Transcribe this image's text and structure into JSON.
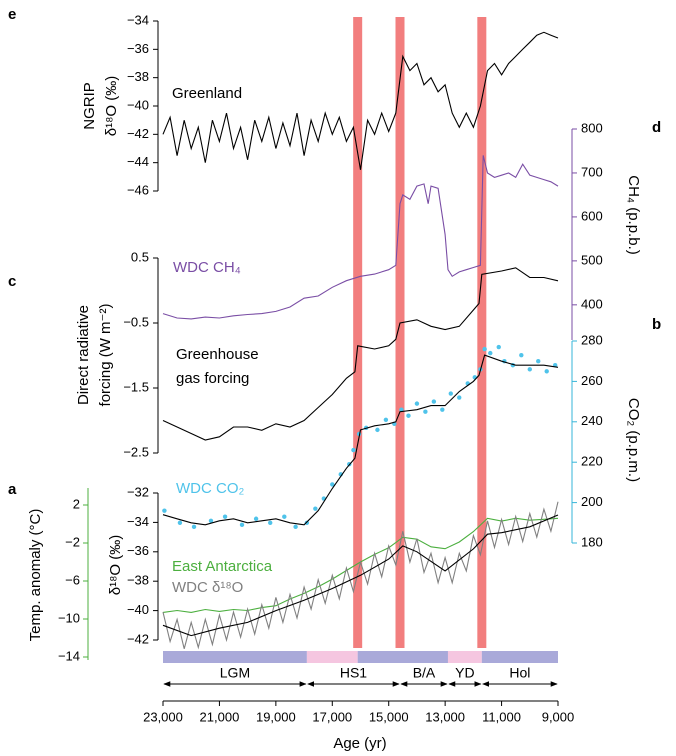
{
  "chart_data": [
    {
      "type": "line",
      "panel_label": "e",
      "ylabel": [
        "NGRIP",
        "δ¹⁸O (‰)"
      ],
      "axis_side": "left",
      "axis_color": "#000000",
      "ylim": [
        -46,
        -34
      ],
      "yticks": [
        {
          "value": -46,
          "label": "−46"
        },
        {
          "value": -44,
          "label": "−44"
        },
        {
          "value": -42,
          "label": "−42"
        },
        {
          "value": -40,
          "label": "−40"
        },
        {
          "value": -38,
          "label": "−38"
        },
        {
          "value": -36,
          "label": "−36"
        },
        {
          "value": -34,
          "label": "−34"
        }
      ],
      "series": [
        {
          "name": "Greenland",
          "color": "#000000",
          "x": [
            23000,
            22750,
            22500,
            22250,
            22000,
            21750,
            21500,
            21250,
            21000,
            20750,
            20500,
            20250,
            20000,
            19750,
            19500,
            19250,
            19000,
            18750,
            18500,
            18250,
            18000,
            17750,
            17500,
            17250,
            17000,
            16750,
            16500,
            16250,
            16000,
            15750,
            15500,
            15250,
            15000,
            14750,
            14500,
            14250,
            14000,
            13750,
            13500,
            13250,
            13000,
            12750,
            12500,
            12250,
            12000,
            11750,
            11500,
            11250,
            11000,
            10750,
            10500,
            10250,
            10000,
            9750,
            9500,
            9250,
            9000
          ],
          "values": [
            -42,
            -40.8,
            -43.5,
            -41,
            -43,
            -41.5,
            -44,
            -41,
            -42.5,
            -40.5,
            -43,
            -41.5,
            -43.8,
            -41,
            -42.5,
            -40.8,
            -43,
            -41.2,
            -42.8,
            -40.5,
            -43.5,
            -41,
            -42.5,
            -40.5,
            -42,
            -40.8,
            -42.5,
            -41.5,
            -44.5,
            -41,
            -42,
            -40.5,
            -41.8,
            -40.5,
            -36.5,
            -37.5,
            -37,
            -38.5,
            -38,
            -39,
            -38.5,
            -40.5,
            -41.5,
            -40.5,
            -41.5,
            -40,
            -37.5,
            -37,
            -37.8,
            -37,
            -36.5,
            -36,
            -35.5,
            -35,
            -34.8,
            -35,
            -35.2
          ]
        }
      ]
    },
    {
      "type": "line",
      "panel_label": "d",
      "ylabel": [
        "CH₄ (p.p.b.)"
      ],
      "axis_side": "right",
      "axis_color": "#7a4ea5",
      "ylim": [
        320,
        800
      ],
      "yticks": [
        400,
        500,
        600,
        700,
        800
      ],
      "series": [
        {
          "name": "WDC CH₄",
          "color": "#7a4ea5",
          "x": [
            23000,
            22500,
            22000,
            21500,
            21000,
            20500,
            20000,
            19500,
            19000,
            18500,
            18000,
            17500,
            17000,
            16500,
            16000,
            15500,
            15000,
            14750,
            14600,
            14500,
            14250,
            14000,
            13750,
            13600,
            13500,
            13250,
            13000,
            12900,
            12750,
            12500,
            12250,
            12000,
            11750,
            11650,
            11500,
            11250,
            11000,
            10750,
            10500,
            10250,
            10000,
            9750,
            9500,
            9250,
            9000
          ],
          "values": [
            380,
            370,
            368,
            372,
            370,
            375,
            378,
            380,
            385,
            395,
            415,
            420,
            440,
            455,
            465,
            470,
            480,
            490,
            630,
            650,
            640,
            670,
            675,
            630,
            670,
            665,
            560,
            480,
            465,
            475,
            480,
            485,
            490,
            740,
            700,
            690,
            695,
            700,
            690,
            720,
            695,
            690,
            685,
            680,
            670
          ]
        }
      ]
    },
    {
      "type": "line",
      "panel_label": "c",
      "ylabel": [
        "Direct radiative",
        "forcing (W m⁻²)"
      ],
      "axis_side": "left",
      "axis_color": "#000000",
      "ylim": [
        -2.5,
        0.5
      ],
      "yticks": [
        {
          "value": -2.5,
          "label": "−2.5"
        },
        {
          "value": -1.5,
          "label": "−1.5"
        },
        {
          "value": -0.5,
          "label": "−0.5"
        },
        0.5
      ],
      "series": [
        {
          "name": "Greenhouse gas forcing",
          "color": "#000000",
          "x": [
            23000,
            22500,
            22000,
            21500,
            21000,
            20500,
            20000,
            19500,
            19000,
            18500,
            18000,
            17500,
            17000,
            16500,
            16200,
            16100,
            15500,
            15000,
            14750,
            14600,
            14000,
            13500,
            13000,
            12500,
            12000,
            11800,
            11700,
            11000,
            10500,
            10000,
            9500,
            9000
          ],
          "values": [
            -2.0,
            -2.1,
            -2.2,
            -2.3,
            -2.25,
            -2.1,
            -2.1,
            -2.15,
            -2.05,
            -2.1,
            -2.0,
            -1.8,
            -1.6,
            -1.35,
            -1.25,
            -0.85,
            -0.9,
            -0.85,
            -0.75,
            -0.5,
            -0.45,
            -0.55,
            -0.6,
            -0.55,
            -0.3,
            -0.2,
            0.25,
            0.3,
            0.35,
            0.2,
            0.2,
            0.15
          ]
        }
      ]
    },
    {
      "type": "line",
      "panel_label": "b",
      "ylabel": [
        "CO₂ (p.p.m.)"
      ],
      "axis_side": "right",
      "axis_color": "#36b5d8",
      "ylim": [
        180,
        280
      ],
      "yticks": [
        180,
        200,
        220,
        240,
        260,
        280
      ],
      "series": [
        {
          "name": "WDC CO₂",
          "type": "scatter",
          "color": "#4fc3ea",
          "x": [
            22950,
            22400,
            21900,
            21300,
            20800,
            20200,
            19700,
            19200,
            18700,
            18300,
            17900,
            17600,
            17300,
            17000,
            16700,
            16400,
            16250,
            16050,
            15800,
            15400,
            15100,
            14800,
            14550,
            14300,
            14000,
            13700,
            13400,
            13100,
            12800,
            12500,
            12200,
            11950,
            11750,
            11600,
            11400,
            11100,
            10900,
            10600,
            10300,
            10000,
            9700,
            9400,
            9100
          ],
          "values": [
            196,
            190,
            188,
            191,
            193,
            189,
            192,
            190,
            193,
            188,
            190,
            197,
            202,
            209,
            214,
            219,
            226,
            234,
            237,
            236,
            241,
            239,
            246,
            243,
            249,
            245,
            250,
            246,
            254,
            252,
            259,
            262,
            266,
            276,
            274,
            277,
            270,
            268,
            273,
            266,
            270,
            265,
            268
          ]
        },
        {
          "type": "line",
          "color": "#000000",
          "x": [
            23000,
            22500,
            22000,
            21500,
            21000,
            20500,
            20000,
            19500,
            19000,
            18500,
            18000,
            17500,
            17000,
            16500,
            16200,
            16000,
            15500,
            15000,
            14750,
            14600,
            14000,
            13500,
            13000,
            12500,
            12000,
            11800,
            11600,
            11000,
            10500,
            10000,
            9500,
            9000
          ],
          "values": [
            194,
            192,
            190,
            189,
            191,
            192,
            190,
            191,
            192,
            190,
            189,
            196,
            207,
            217,
            222,
            236,
            238,
            239,
            240,
            245,
            246,
            248,
            248,
            255,
            260,
            263,
            273,
            270,
            268,
            268,
            268,
            267
          ]
        }
      ]
    },
    {
      "type": "line",
      "panel_label": "a",
      "ylabel": [
        "δ¹⁸O (‰)"
      ],
      "axis_side": "left",
      "axis_color": "#000000",
      "ylim": [
        -42,
        -32
      ],
      "yticks": [
        {
          "value": -42,
          "label": "−42"
        },
        {
          "value": -40,
          "label": "−40"
        },
        {
          "value": -38,
          "label": "−38"
        },
        {
          "value": -36,
          "label": "−36"
        },
        {
          "value": -34,
          "label": "−34"
        },
        {
          "value": -32,
          "label": "−32"
        }
      ],
      "y2label": "Temp. anomaly (°C)",
      "y2_color": "#4caf3f",
      "y2lim": [
        -14,
        2
      ],
      "y2ticks": [
        {
          "value": -14,
          "label": "−14"
        },
        {
          "value": -10,
          "label": "−10"
        },
        {
          "value": -6,
          "label": "−6"
        },
        {
          "value": -2,
          "label": "−2"
        },
        2
      ],
      "series": [
        {
          "name": "East Antarctica",
          "axis": "y2",
          "color": "#4caf3f",
          "x": [
            23000,
            22500,
            22000,
            21500,
            21000,
            20500,
            20000,
            19500,
            19000,
            18500,
            18000,
            17500,
            17000,
            16500,
            16000,
            15500,
            15000,
            14500,
            14000,
            13500,
            13000,
            12500,
            12000,
            11500,
            11000,
            10500,
            10000,
            9500,
            9000
          ],
          "values": [
            -9.3,
            -9.1,
            -9.3,
            -9.0,
            -9.2,
            -9.0,
            -9.1,
            -8.8,
            -8.6,
            -7.9,
            -7.3,
            -6.6,
            -5.8,
            -4.9,
            -4.0,
            -3.2,
            -2.5,
            -1.4,
            -1.6,
            -2.4,
            -2.6,
            -1.9,
            -0.8,
            0.6,
            0.3,
            0.6,
            0.4,
            0.5,
            0.6
          ]
        },
        {
          "name": "WDC δ¹⁸O",
          "color": "#808080",
          "x": [
            23000,
            22750,
            22500,
            22250,
            22000,
            21750,
            21500,
            21250,
            21000,
            20750,
            20500,
            20250,
            20000,
            19750,
            19500,
            19250,
            19000,
            18750,
            18500,
            18250,
            18000,
            17750,
            17500,
            17250,
            17000,
            16750,
            16500,
            16250,
            16000,
            15750,
            15500,
            15250,
            15000,
            14750,
            14500,
            14250,
            14000,
            13750,
            13500,
            13250,
            13000,
            12750,
            12500,
            12250,
            12000,
            11750,
            11500,
            11250,
            11000,
            10750,
            10500,
            10250,
            10000,
            9750,
            9500,
            9250,
            9000
          ],
          "values": [
            -40.1,
            -42.1,
            -40.6,
            -42.6,
            -40.8,
            -42.5,
            -40.6,
            -42.3,
            -40.3,
            -42.0,
            -40.1,
            -41.8,
            -39.9,
            -41.6,
            -39.6,
            -41.2,
            -39.1,
            -40.8,
            -38.9,
            -40.5,
            -38.4,
            -39.9,
            -37.9,
            -39.5,
            -37.6,
            -39.2,
            -37.1,
            -38.7,
            -36.7,
            -38.2,
            -36.1,
            -37.7,
            -35.6,
            -36.9,
            -34.6,
            -36.7,
            -35.1,
            -37.4,
            -36.1,
            -38.1,
            -36.4,
            -38.1,
            -36.1,
            -37.3,
            -34.9,
            -36.2,
            -33.9,
            -35.7,
            -33.8,
            -35.5,
            -33.6,
            -35.3,
            -33.4,
            -35.0,
            -33.1,
            -34.6,
            -32.6
          ]
        },
        {
          "color": "#000000",
          "x": [
            23000,
            22000,
            21000,
            20000,
            19000,
            18000,
            17000,
            16000,
            15000,
            14500,
            14000,
            13000,
            12000,
            11500,
            11000,
            10000,
            9000
          ],
          "values": [
            -41,
            -41.7,
            -41.2,
            -40.8,
            -40,
            -39.3,
            -38.5,
            -37.6,
            -36.5,
            -35.6,
            -36,
            -37.3,
            -35.8,
            -34.8,
            -34.7,
            -34.3,
            -33.5
          ]
        }
      ],
      "xlabel": "Age (yr)",
      "xlim": [
        23000,
        9000
      ],
      "xticks": [
        {
          "value": 23000,
          "label": "23,000"
        },
        {
          "value": 21000,
          "label": "21,000"
        },
        {
          "value": 19000,
          "label": "19,000"
        },
        {
          "value": 17000,
          "label": "17,000"
        },
        {
          "value": 15000,
          "label": "15,000"
        },
        {
          "value": 13000,
          "label": "13,000"
        },
        {
          "value": 11000,
          "label": "11,000"
        },
        {
          "value": 9000,
          "label": "9,000"
        }
      ],
      "highlights": [
        16100,
        14600,
        11700
      ],
      "highlight_color": "#f27e7e",
      "bands": [
        {
          "start": 23000,
          "end": 17900,
          "color": "#a9a9d9"
        },
        {
          "start": 17900,
          "end": 16100,
          "color": "#f5c6e0"
        },
        {
          "start": 16100,
          "end": 12900,
          "color": "#a9a9d9"
        },
        {
          "start": 12900,
          "end": 11700,
          "color": "#f5c6e0"
        },
        {
          "start": 11700,
          "end": 9000,
          "color": "#a9a9d9"
        }
      ],
      "periods": [
        {
          "label": "LGM",
          "start": 23000,
          "end": 17900
        },
        {
          "label": "HS1",
          "start": 17900,
          "end": 14600
        },
        {
          "label": "B/A",
          "start": 14600,
          "end": 12900
        },
        {
          "label": "YD",
          "start": 12900,
          "end": 11700
        },
        {
          "label": "Hol",
          "start": 11700,
          "end": 9000
        }
      ]
    }
  ]
}
